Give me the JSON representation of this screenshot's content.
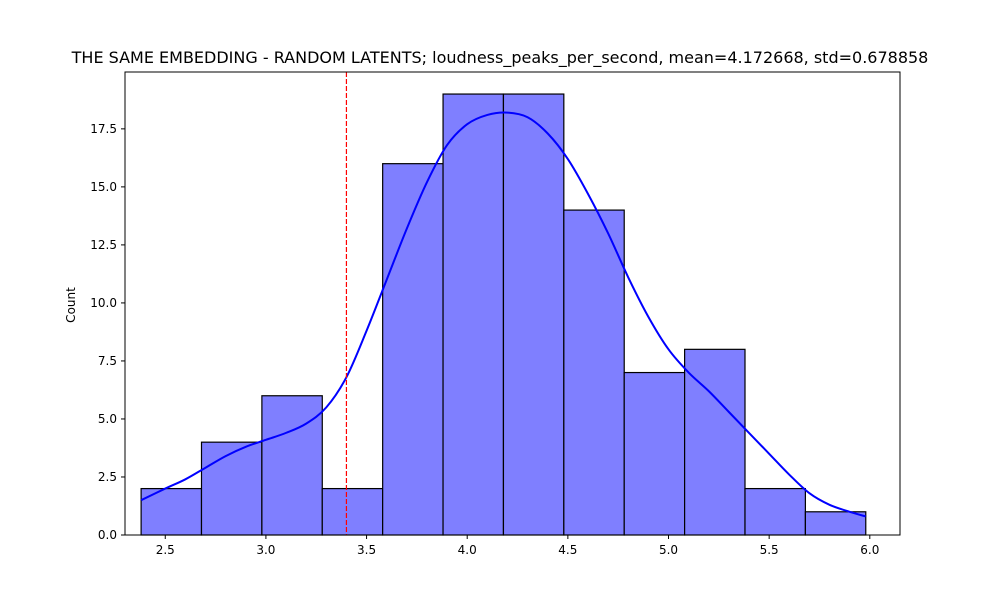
{
  "chart_data": {
    "type": "bar",
    "title": "THE SAME EMBEDDING - RANDOM LATENTS; loudness_peaks_per_second, mean=4.172668, std=0.678858",
    "xlabel": "",
    "ylabel": "Count",
    "xlim": [
      2.3,
      6.15
    ],
    "ylim": [
      0,
      19.95
    ],
    "x_ticks": [
      2.5,
      3.0,
      3.5,
      4.0,
      4.5,
      5.0,
      5.5,
      6.0
    ],
    "y_ticks": [
      0.0,
      2.5,
      5.0,
      7.5,
      10.0,
      12.5,
      15.0,
      17.5
    ],
    "x_tick_labels": [
      "2.5",
      "3.0",
      "3.5",
      "4.0",
      "4.5",
      "5.0",
      "5.5",
      "6.0"
    ],
    "y_tick_labels": [
      "0.0",
      "2.5",
      "5.0",
      "7.5",
      "10.0",
      "12.5",
      "15.0",
      "17.5"
    ],
    "bins": [
      {
        "start": 2.38,
        "end": 2.68,
        "count": 2
      },
      {
        "start": 2.68,
        "end": 2.98,
        "count": 4
      },
      {
        "start": 2.98,
        "end": 3.28,
        "count": 6
      },
      {
        "start": 3.28,
        "end": 3.58,
        "count": 2
      },
      {
        "start": 3.58,
        "end": 3.88,
        "count": 16
      },
      {
        "start": 3.88,
        "end": 4.18,
        "count": 19
      },
      {
        "start": 4.18,
        "end": 4.48,
        "count": 19
      },
      {
        "start": 4.48,
        "end": 4.78,
        "count": 14
      },
      {
        "start": 4.78,
        "end": 5.08,
        "count": 7
      },
      {
        "start": 5.08,
        "end": 5.38,
        "count": 8
      },
      {
        "start": 5.38,
        "end": 5.68,
        "count": 2
      },
      {
        "start": 5.68,
        "end": 5.98,
        "count": 1
      }
    ],
    "kde": {
      "x": [
        2.38,
        2.5,
        2.6,
        2.7,
        2.8,
        2.9,
        3.0,
        3.1,
        3.2,
        3.3,
        3.4,
        3.5,
        3.6,
        3.7,
        3.8,
        3.9,
        4.0,
        4.1,
        4.2,
        4.3,
        4.4,
        4.5,
        4.6,
        4.7,
        4.8,
        4.9,
        5.0,
        5.1,
        5.2,
        5.3,
        5.4,
        5.5,
        5.6,
        5.7,
        5.8,
        5.9,
        5.98
      ],
      "y": [
        1.5,
        2.0,
        2.4,
        2.9,
        3.4,
        3.8,
        4.1,
        4.4,
        4.8,
        5.5,
        6.8,
        8.8,
        11.0,
        13.2,
        15.2,
        16.8,
        17.7,
        18.1,
        18.2,
        18.0,
        17.3,
        16.2,
        14.7,
        13.0,
        11.1,
        9.4,
        8.0,
        7.0,
        6.2,
        5.3,
        4.4,
        3.5,
        2.6,
        1.8,
        1.3,
        1.0,
        0.8
      ]
    },
    "vline": {
      "x": 3.4
    },
    "grid": false,
    "colors": {
      "bar_fill": "#7f7fff",
      "bar_edge": "#000000",
      "kde_line": "#0000ff",
      "vline": "#ff0000"
    }
  }
}
